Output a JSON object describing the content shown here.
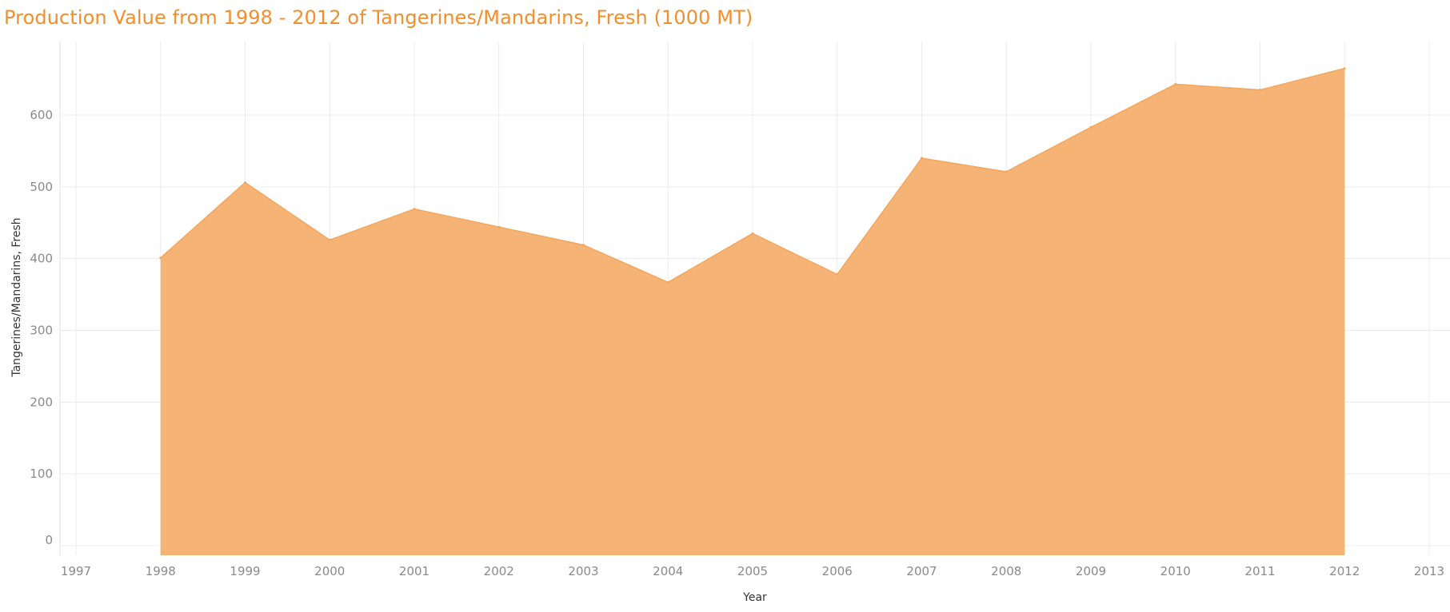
{
  "chart_data": {
    "type": "area",
    "title": "Production Value from 1998 - 2012 of Tangerines/Mandarins, Fresh (1000 MT)",
    "xlabel": "Year",
    "ylabel": "Tangerines/Mandarins, Fresh",
    "x": [
      1998,
      1999,
      2000,
      2001,
      2002,
      2003,
      2004,
      2005,
      2006,
      2007,
      2008,
      2009,
      2010,
      2011,
      2012
    ],
    "values": [
      401,
      506,
      426,
      469,
      444,
      419,
      367,
      435,
      378,
      540,
      521,
      583,
      643,
      635,
      665
    ],
    "xlim": [
      1997,
      2013
    ],
    "ylim": [
      0,
      690
    ],
    "x_ticks": [
      "1997",
      "1998",
      "1999",
      "2000",
      "2001",
      "2002",
      "2003",
      "2004",
      "2005",
      "2006",
      "2007",
      "2008",
      "2009",
      "2010",
      "2011",
      "2012",
      "2013"
    ],
    "y_ticks": [
      "0",
      "100",
      "200",
      "300",
      "400",
      "500",
      "600"
    ],
    "grid": true,
    "colors": {
      "title": "#f28e2b",
      "area_fill": "#f5b375",
      "area_line": "#f2a75d"
    }
  }
}
